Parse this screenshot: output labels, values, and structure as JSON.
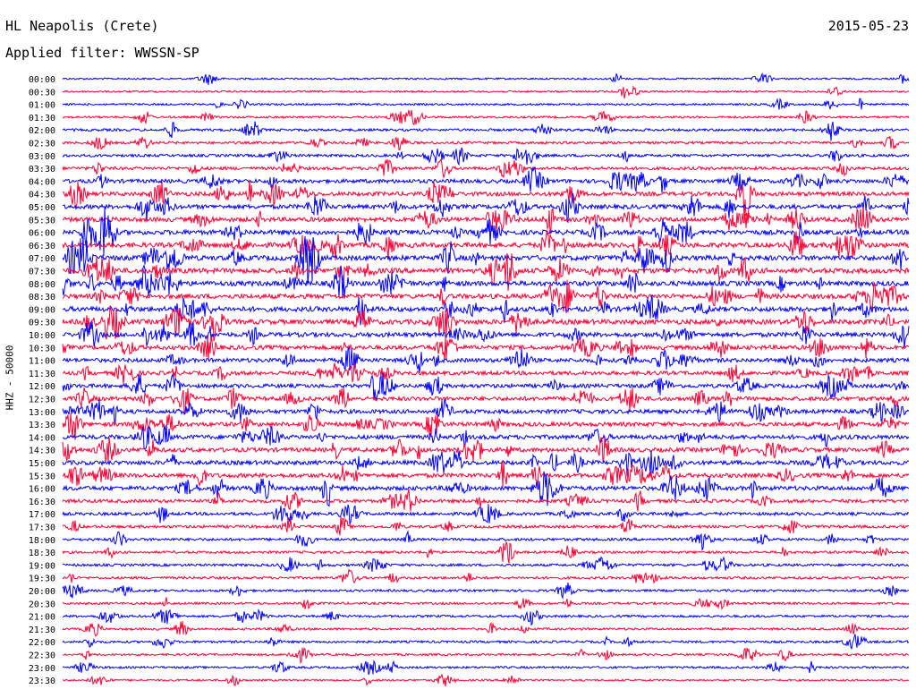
{
  "header": {
    "title": "HL Neapolis (Crete)",
    "filter": "Applied filter: WWSSN-SP",
    "date": "2015-05-23"
  },
  "chart_data": {
    "type": "line",
    "title": "HL Neapolis (Crete)",
    "subtitle": "Applied filter: WWSSN-SP",
    "ylabel": "HHZ - 50000",
    "xlabel": "",
    "series_colors": [
      "#0000ff",
      "#ff0033"
    ],
    "categories": [
      "00:00",
      "00:30",
      "01:00",
      "01:30",
      "02:00",
      "02:30",
      "03:00",
      "03:30",
      "04:00",
      "04:30",
      "05:00",
      "05:30",
      "06:00",
      "06:30",
      "07:00",
      "07:30",
      "08:00",
      "08:30",
      "09:00",
      "09:30",
      "10:00",
      "10:30",
      "11:00",
      "11:30",
      "12:00",
      "12:30",
      "13:00",
      "13:30",
      "14:00",
      "14:30",
      "15:00",
      "15:30",
      "16:00",
      "16:30",
      "17:00",
      "17:30",
      "18:00",
      "18:30",
      "19:00",
      "19:30",
      "20:00",
      "20:30",
      "21:00",
      "21:30",
      "22:00",
      "22:30",
      "23:00",
      "23:30"
    ],
    "activity": [
      0.15,
      0.15,
      0.2,
      0.25,
      0.35,
      0.35,
      0.4,
      0.5,
      0.7,
      0.75,
      0.8,
      0.85,
      0.9,
      0.95,
      1.0,
      1.0,
      0.95,
      0.9,
      0.95,
      0.95,
      0.85,
      0.8,
      0.75,
      0.7,
      0.7,
      0.75,
      0.75,
      0.8,
      0.8,
      0.8,
      0.8,
      0.8,
      0.8,
      0.6,
      0.5,
      0.45,
      0.4,
      0.35,
      0.35,
      0.35,
      0.3,
      0.3,
      0.3,
      0.3,
      0.3,
      0.25,
      0.25,
      0.2
    ]
  }
}
